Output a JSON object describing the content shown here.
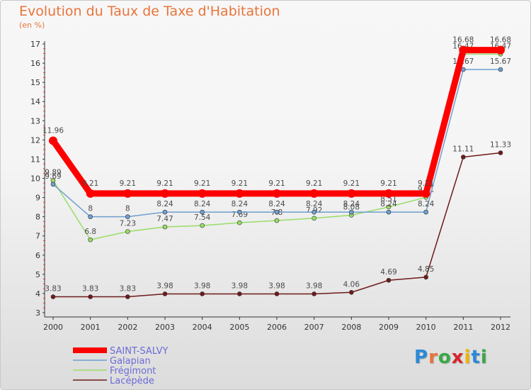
{
  "chart_data": {
    "type": "line",
    "title": "Evolution du Taux de Taxe d'Habitation",
    "subtitle": "(en %)",
    "x": [
      2000,
      2001,
      2002,
      2003,
      2004,
      2005,
      2006,
      2007,
      2008,
      2009,
      2010,
      2011,
      2012
    ],
    "x_tick_labels": [
      "2000",
      "2001",
      "2002",
      "2003",
      "2004",
      "2005",
      "2006",
      "2007",
      "2008",
      "2009",
      "2010",
      "2011",
      "2012"
    ],
    "ylim": [
      3,
      17
    ],
    "y_ticks": [
      3,
      4,
      5,
      6,
      7,
      8,
      9,
      10,
      11,
      12,
      13,
      14,
      15,
      16,
      17
    ],
    "y_tick_labels": [
      "3",
      "4",
      "5",
      "6",
      "7",
      "8",
      "9",
      "10",
      "11",
      "12",
      "13",
      "14",
      "15",
      "16",
      "17"
    ],
    "grid": false,
    "legend_position": "bottom-left",
    "series": [
      {
        "name": "Lacépède",
        "color": "#6e1a1a",
        "values": [
          3.83,
          3.83,
          3.83,
          3.98,
          3.98,
          3.98,
          3.98,
          3.98,
          4.06,
          4.69,
          4.85,
          11.11,
          11.33
        ],
        "labels": [
          "3.83",
          "3.83",
          "3.83",
          "3.98",
          "3.98",
          "3.98",
          "3.98",
          "3.98",
          "4.06",
          "4.69",
          "4.85",
          "11.11",
          "11.33"
        ]
      },
      {
        "name": "Frégimont",
        "color": "#99dd66",
        "values": [
          9.89,
          6.8,
          7.23,
          7.47,
          7.54,
          7.69,
          7.8,
          7.92,
          8.08,
          8.51,
          9.01,
          16.47,
          16.47
        ],
        "labels": [
          "9.89",
          "6.8",
          "7.23",
          "7.47",
          "7.54",
          "7.69",
          "7.8",
          "7.92",
          "8.08",
          "8.51",
          "9.01",
          "16.47",
          "16.47"
        ]
      },
      {
        "name": "Galapian",
        "color": "#6f9fcf",
        "values": [
          9.69,
          8,
          8,
          8.24,
          8.24,
          8.24,
          8.24,
          8.24,
          8.24,
          8.24,
          8.24,
          15.67,
          15.67
        ],
        "labels": [
          "9.69",
          "8",
          "8",
          "8.24",
          "8.24",
          "8.24",
          "8.24",
          "8.24",
          "8.24",
          "8.24",
          "8.24",
          "15.67",
          "15.67"
        ]
      },
      {
        "name": "SAINT-SALVY",
        "color": "#ff0000",
        "values": [
          11.96,
          9.21,
          9.21,
          9.21,
          9.21,
          9.21,
          9.21,
          9.21,
          9.21,
          9.21,
          9.21,
          16.68,
          16.68
        ],
        "labels": [
          "11.96",
          "9.21",
          "9.21",
          "9.21",
          "9.21",
          "9.21",
          "9.21",
          "9.21",
          "9.21",
          "9.21",
          "9.21",
          "16.68",
          "16.68"
        ]
      }
    ],
    "legend": [
      "SAINT-SALVY",
      "Galapian",
      "Frégimont",
      "Lacépède"
    ]
  },
  "brand": {
    "letters": [
      "P",
      "r",
      "o",
      "x",
      "i",
      "t",
      "i"
    ]
  }
}
